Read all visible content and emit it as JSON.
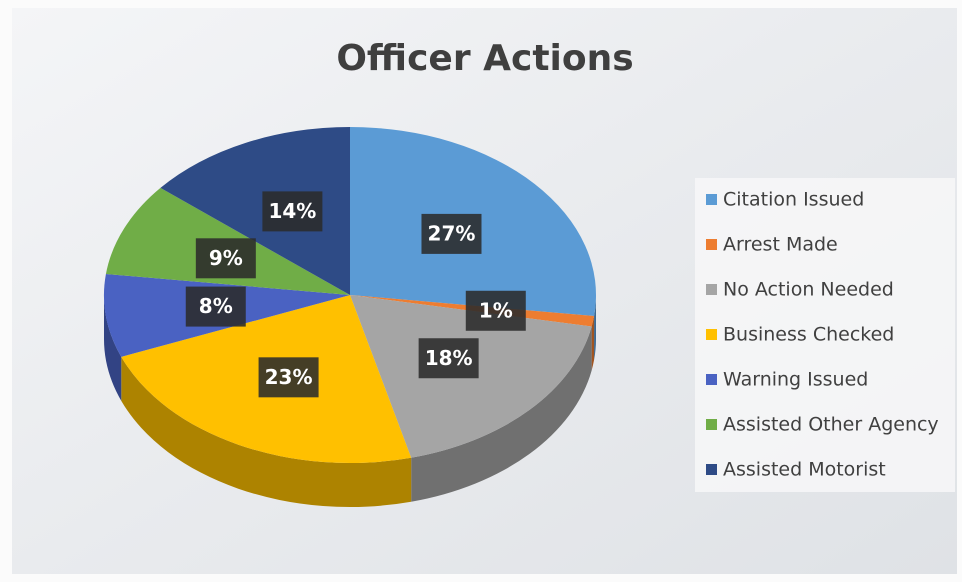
{
  "chart_data": {
    "type": "pie",
    "title": "Officer Actions",
    "categories": [
      "Citation Issued",
      "Arrest Made",
      "No Action Needed",
      "Business Checked",
      "Warning Issued",
      "Assisted Other Agency",
      "Assisted Motorist"
    ],
    "values": [
      27,
      1,
      18,
      23,
      8,
      9,
      14
    ],
    "value_labels": [
      "27%",
      "1%",
      "18%",
      "23%",
      "8%",
      "9%",
      "14%"
    ],
    "colors": [
      "#5b9bd5",
      "#ed7d31",
      "#a5a5a5",
      "#ffc000",
      "#4a62c2",
      "#70ad47",
      "#2e4b86"
    ],
    "legend": "right"
  }
}
